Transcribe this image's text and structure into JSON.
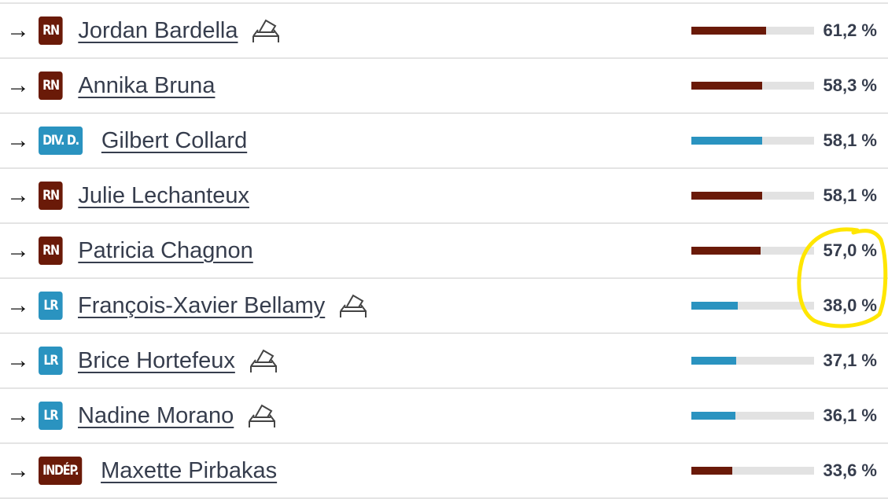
{
  "colors": {
    "RN": "#6a1a08",
    "DIV. D.": "#2a93c0",
    "LR": "#2a93c0",
    "INDÉP.": "#6a1a08",
    "highlight": "#ffe600"
  },
  "rows": [
    {
      "party": "RN",
      "name": "Jordan Bardella",
      "ballot": true,
      "value": 61.2,
      "label": "61,2 %"
    },
    {
      "party": "RN",
      "name": "Annika Bruna",
      "ballot": false,
      "value": 58.3,
      "label": "58,3 %"
    },
    {
      "party": "DIV. D.",
      "name": "Gilbert Collard",
      "ballot": false,
      "value": 58.1,
      "label": "58,1 %"
    },
    {
      "party": "RN",
      "name": "Julie Lechanteux",
      "ballot": false,
      "value": 58.1,
      "label": "58,1 %"
    },
    {
      "party": "RN",
      "name": "Patricia Chagnon",
      "ballot": false,
      "value": 57.0,
      "label": "57,0 %"
    },
    {
      "party": "LR",
      "name": "François-Xavier Bellamy",
      "ballot": true,
      "value": 38.0,
      "label": "38,0 %"
    },
    {
      "party": "LR",
      "name": "Brice Hortefeux",
      "ballot": true,
      "value": 37.1,
      "label": "37,1 %"
    },
    {
      "party": "LR",
      "name": "Nadine Morano",
      "ballot": true,
      "value": 36.1,
      "label": "36,1 %"
    },
    {
      "party": "INDÉP.",
      "name": "Maxette Pirbakas",
      "ballot": false,
      "value": 33.6,
      "label": "33,6 %"
    }
  ],
  "arrow_icon": "→"
}
